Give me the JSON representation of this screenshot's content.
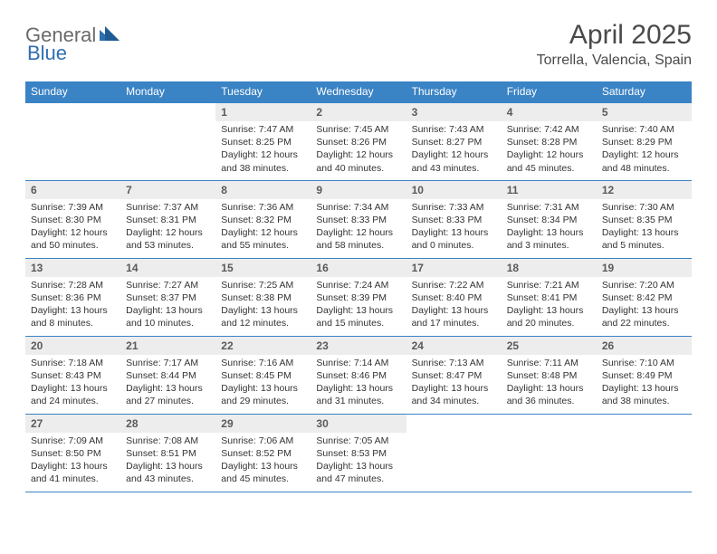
{
  "logo": {
    "part1": "General",
    "part2": "Blue"
  },
  "header": {
    "title": "April 2025",
    "location": "Torrella, Valencia, Spain"
  },
  "colors": {
    "header_bg": "#3a83c5",
    "header_text": "#ffffff",
    "daynum_bg": "#ededed",
    "row_border": "#3a83c5",
    "body_text": "#333333",
    "logo_gray": "#6a6a6a",
    "logo_blue": "#2f6fb0"
  },
  "week_headers": [
    "Sunday",
    "Monday",
    "Tuesday",
    "Wednesday",
    "Thursday",
    "Friday",
    "Saturday"
  ],
  "weeks": [
    [
      null,
      null,
      {
        "num": "1",
        "sunrise": "Sunrise: 7:47 AM",
        "sunset": "Sunset: 8:25 PM",
        "daylight1": "Daylight: 12 hours",
        "daylight2": "and 38 minutes."
      },
      {
        "num": "2",
        "sunrise": "Sunrise: 7:45 AM",
        "sunset": "Sunset: 8:26 PM",
        "daylight1": "Daylight: 12 hours",
        "daylight2": "and 40 minutes."
      },
      {
        "num": "3",
        "sunrise": "Sunrise: 7:43 AM",
        "sunset": "Sunset: 8:27 PM",
        "daylight1": "Daylight: 12 hours",
        "daylight2": "and 43 minutes."
      },
      {
        "num": "4",
        "sunrise": "Sunrise: 7:42 AM",
        "sunset": "Sunset: 8:28 PM",
        "daylight1": "Daylight: 12 hours",
        "daylight2": "and 45 minutes."
      },
      {
        "num": "5",
        "sunrise": "Sunrise: 7:40 AM",
        "sunset": "Sunset: 8:29 PM",
        "daylight1": "Daylight: 12 hours",
        "daylight2": "and 48 minutes."
      }
    ],
    [
      {
        "num": "6",
        "sunrise": "Sunrise: 7:39 AM",
        "sunset": "Sunset: 8:30 PM",
        "daylight1": "Daylight: 12 hours",
        "daylight2": "and 50 minutes."
      },
      {
        "num": "7",
        "sunrise": "Sunrise: 7:37 AM",
        "sunset": "Sunset: 8:31 PM",
        "daylight1": "Daylight: 12 hours",
        "daylight2": "and 53 minutes."
      },
      {
        "num": "8",
        "sunrise": "Sunrise: 7:36 AM",
        "sunset": "Sunset: 8:32 PM",
        "daylight1": "Daylight: 12 hours",
        "daylight2": "and 55 minutes."
      },
      {
        "num": "9",
        "sunrise": "Sunrise: 7:34 AM",
        "sunset": "Sunset: 8:33 PM",
        "daylight1": "Daylight: 12 hours",
        "daylight2": "and 58 minutes."
      },
      {
        "num": "10",
        "sunrise": "Sunrise: 7:33 AM",
        "sunset": "Sunset: 8:33 PM",
        "daylight1": "Daylight: 13 hours",
        "daylight2": "and 0 minutes."
      },
      {
        "num": "11",
        "sunrise": "Sunrise: 7:31 AM",
        "sunset": "Sunset: 8:34 PM",
        "daylight1": "Daylight: 13 hours",
        "daylight2": "and 3 minutes."
      },
      {
        "num": "12",
        "sunrise": "Sunrise: 7:30 AM",
        "sunset": "Sunset: 8:35 PM",
        "daylight1": "Daylight: 13 hours",
        "daylight2": "and 5 minutes."
      }
    ],
    [
      {
        "num": "13",
        "sunrise": "Sunrise: 7:28 AM",
        "sunset": "Sunset: 8:36 PM",
        "daylight1": "Daylight: 13 hours",
        "daylight2": "and 8 minutes."
      },
      {
        "num": "14",
        "sunrise": "Sunrise: 7:27 AM",
        "sunset": "Sunset: 8:37 PM",
        "daylight1": "Daylight: 13 hours",
        "daylight2": "and 10 minutes."
      },
      {
        "num": "15",
        "sunrise": "Sunrise: 7:25 AM",
        "sunset": "Sunset: 8:38 PM",
        "daylight1": "Daylight: 13 hours",
        "daylight2": "and 12 minutes."
      },
      {
        "num": "16",
        "sunrise": "Sunrise: 7:24 AM",
        "sunset": "Sunset: 8:39 PM",
        "daylight1": "Daylight: 13 hours",
        "daylight2": "and 15 minutes."
      },
      {
        "num": "17",
        "sunrise": "Sunrise: 7:22 AM",
        "sunset": "Sunset: 8:40 PM",
        "daylight1": "Daylight: 13 hours",
        "daylight2": "and 17 minutes."
      },
      {
        "num": "18",
        "sunrise": "Sunrise: 7:21 AM",
        "sunset": "Sunset: 8:41 PM",
        "daylight1": "Daylight: 13 hours",
        "daylight2": "and 20 minutes."
      },
      {
        "num": "19",
        "sunrise": "Sunrise: 7:20 AM",
        "sunset": "Sunset: 8:42 PM",
        "daylight1": "Daylight: 13 hours",
        "daylight2": "and 22 minutes."
      }
    ],
    [
      {
        "num": "20",
        "sunrise": "Sunrise: 7:18 AM",
        "sunset": "Sunset: 8:43 PM",
        "daylight1": "Daylight: 13 hours",
        "daylight2": "and 24 minutes."
      },
      {
        "num": "21",
        "sunrise": "Sunrise: 7:17 AM",
        "sunset": "Sunset: 8:44 PM",
        "daylight1": "Daylight: 13 hours",
        "daylight2": "and 27 minutes."
      },
      {
        "num": "22",
        "sunrise": "Sunrise: 7:16 AM",
        "sunset": "Sunset: 8:45 PM",
        "daylight1": "Daylight: 13 hours",
        "daylight2": "and 29 minutes."
      },
      {
        "num": "23",
        "sunrise": "Sunrise: 7:14 AM",
        "sunset": "Sunset: 8:46 PM",
        "daylight1": "Daylight: 13 hours",
        "daylight2": "and 31 minutes."
      },
      {
        "num": "24",
        "sunrise": "Sunrise: 7:13 AM",
        "sunset": "Sunset: 8:47 PM",
        "daylight1": "Daylight: 13 hours",
        "daylight2": "and 34 minutes."
      },
      {
        "num": "25",
        "sunrise": "Sunrise: 7:11 AM",
        "sunset": "Sunset: 8:48 PM",
        "daylight1": "Daylight: 13 hours",
        "daylight2": "and 36 minutes."
      },
      {
        "num": "26",
        "sunrise": "Sunrise: 7:10 AM",
        "sunset": "Sunset: 8:49 PM",
        "daylight1": "Daylight: 13 hours",
        "daylight2": "and 38 minutes."
      }
    ],
    [
      {
        "num": "27",
        "sunrise": "Sunrise: 7:09 AM",
        "sunset": "Sunset: 8:50 PM",
        "daylight1": "Daylight: 13 hours",
        "daylight2": "and 41 minutes."
      },
      {
        "num": "28",
        "sunrise": "Sunrise: 7:08 AM",
        "sunset": "Sunset: 8:51 PM",
        "daylight1": "Daylight: 13 hours",
        "daylight2": "and 43 minutes."
      },
      {
        "num": "29",
        "sunrise": "Sunrise: 7:06 AM",
        "sunset": "Sunset: 8:52 PM",
        "daylight1": "Daylight: 13 hours",
        "daylight2": "and 45 minutes."
      },
      {
        "num": "30",
        "sunrise": "Sunrise: 7:05 AM",
        "sunset": "Sunset: 8:53 PM",
        "daylight1": "Daylight: 13 hours",
        "daylight2": "and 47 minutes."
      },
      null,
      null,
      null
    ]
  ]
}
